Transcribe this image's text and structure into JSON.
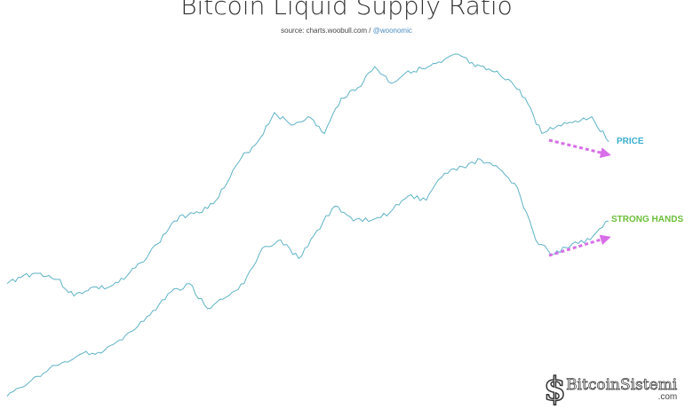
{
  "chart_data": {
    "type": "line",
    "title": "Bitcoin Liquid Supply Ratio",
    "source_prefix": "source: charts.woobull.com / ",
    "source_handle": "@woonomic",
    "grid": false,
    "series": [
      {
        "name": "PRICE",
        "color": "#5fb3c6",
        "label_color": "#3bb0cf",
        "values": [
          32,
          34,
          34.5,
          33,
          29,
          31,
          31,
          33,
          37,
          41.5,
          47,
          49,
          50,
          55,
          62,
          66,
          73,
          70,
          72,
          68,
          76.5,
          79,
          84,
          80,
          83,
          83.5,
          85,
          87,
          84,
          83,
          81,
          76.5,
          68,
          70,
          71,
          72,
          66
        ]
      },
      {
        "name": "STRONG HANDS",
        "color": "#5fb3c6",
        "label_color": "#6cbf3b",
        "values": [
          5,
          7.5,
          10.5,
          13,
          15,
          15.5,
          18,
          21,
          25.5,
          30,
          32,
          26,
          28.7,
          32,
          40.5,
          42.5,
          38,
          44.7,
          50.6,
          47,
          47.2,
          49,
          53,
          52,
          58.5,
          60,
          61.7,
          59.5,
          55,
          42.5,
          39,
          41.5,
          42.5,
          47
        ]
      }
    ],
    "annotations": [
      {
        "type": "arrow",
        "direction": "down",
        "color": "#d86de8"
      },
      {
        "type": "arrow",
        "direction": "up",
        "color": "#d86de8"
      }
    ]
  },
  "logo": {
    "symbol": "$",
    "name": "BitcoinSistemi",
    ".com": ".com",
    "domain": ".com"
  }
}
